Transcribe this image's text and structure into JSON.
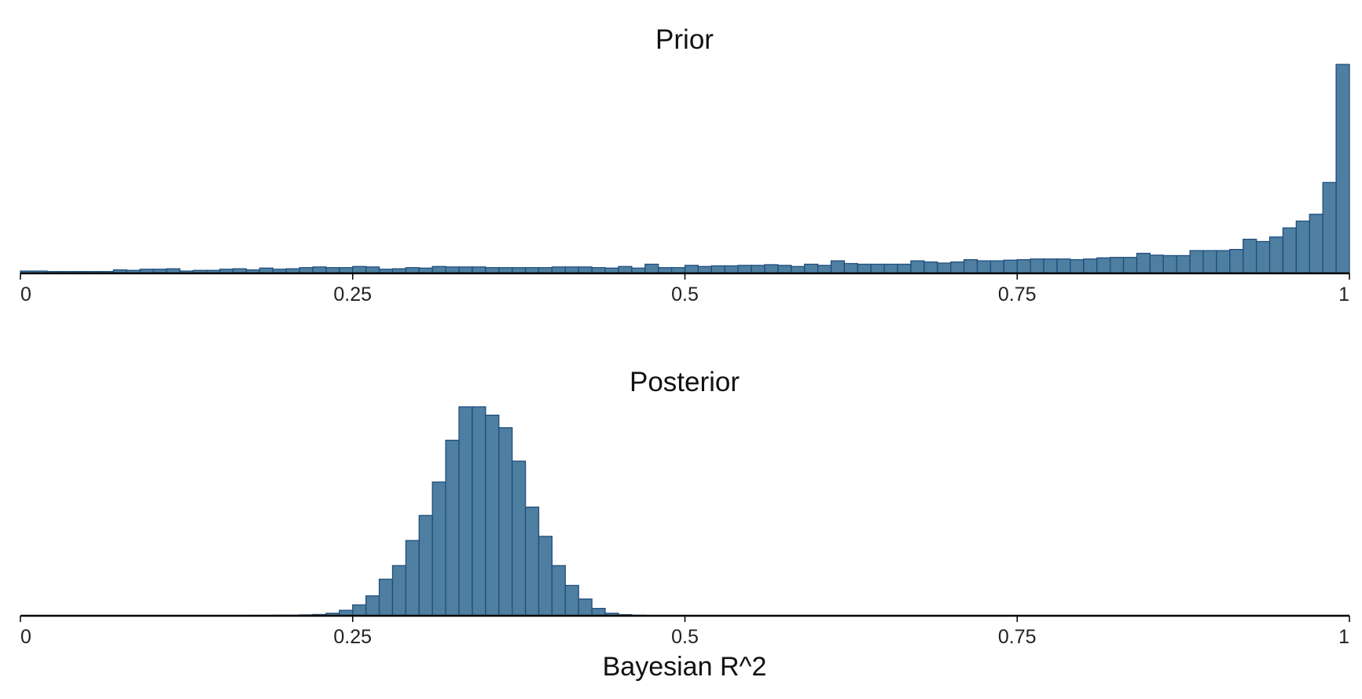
{
  "chart_data": [
    {
      "type": "bar",
      "title": "Prior",
      "xlabel": "",
      "ylabel": "",
      "xlim": [
        0,
        1
      ],
      "bin_width": 0.01,
      "x_ticks": [
        "0",
        "0.25",
        "0.5",
        "0.75",
        "1"
      ],
      "x_tick_values": [
        0,
        0.25,
        0.5,
        0.75,
        1
      ],
      "grid": false,
      "values": [
        1.0,
        1.0,
        0.8,
        0.8,
        0.8,
        0.8,
        0.8,
        1.5,
        1.3,
        1.8,
        1.8,
        2.0,
        1.0,
        1.3,
        1.3,
        1.8,
        2.0,
        1.5,
        2.3,
        1.8,
        2.0,
        2.5,
        2.8,
        2.5,
        2.5,
        3.0,
        2.8,
        1.8,
        2.0,
        2.5,
        2.3,
        3.0,
        2.8,
        2.8,
        2.8,
        2.5,
        2.5,
        2.5,
        2.5,
        2.5,
        2.8,
        2.8,
        2.8,
        2.5,
        2.3,
        3.0,
        2.3,
        4.0,
        2.5,
        2.5,
        3.5,
        3.0,
        3.3,
        3.3,
        3.5,
        3.5,
        3.8,
        3.5,
        3.0,
        4.0,
        3.5,
        5.5,
        4.3,
        4.0,
        4.0,
        4.0,
        4.0,
        5.5,
        5.0,
        4.5,
        5.0,
        6.0,
        5.5,
        5.5,
        5.8,
        6.0,
        6.3,
        6.3,
        6.3,
        6.0,
        6.3,
        6.8,
        7.0,
        7.0,
        8.8,
        8.0,
        7.8,
        7.8,
        10.0,
        10.0,
        10.0,
        10.5,
        15.0,
        14.0,
        16.0,
        20.0,
        23.0,
        26.0,
        40.0,
        92.0
      ],
      "ylim": [
        0,
        92
      ]
    },
    {
      "type": "bar",
      "title": "Posterior",
      "xlabel": "Bayesian R^2",
      "ylabel": "",
      "xlim": [
        0,
        1
      ],
      "bin_width": 0.01,
      "x_ticks": [
        "0",
        "0.25",
        "0.5",
        "0.75",
        "1"
      ],
      "x_tick_values": [
        0,
        0.25,
        0.5,
        0.75,
        1
      ],
      "grid": false,
      "bins_start": 0.17,
      "values": [
        0.15,
        0.15,
        0.25,
        0.25,
        0.4,
        0.6,
        1.2,
        2.6,
        5.2,
        9.5,
        17.5,
        24.0,
        36.0,
        48.0,
        64.0,
        84.0,
        100.0,
        100.0,
        96.0,
        90.0,
        74.0,
        52.0,
        38.0,
        24.0,
        14.5,
        8.0,
        3.5,
        1.2,
        0.5,
        0.25
      ],
      "ylim": [
        0,
        100
      ]
    }
  ],
  "style": {
    "bar_fill": "#4e7fa0",
    "bar_stroke": "#1f4e7e",
    "axis_color": "#000000"
  }
}
